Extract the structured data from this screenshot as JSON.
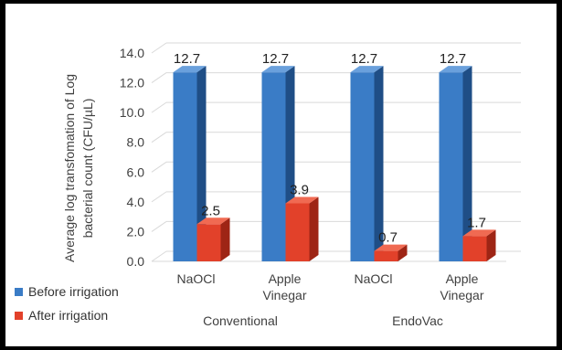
{
  "chart_data": {
    "type": "bar",
    "variant": "3d-clustered-column",
    "ylabel_line1": "Average log transfomation of Log",
    "ylabel_line2": "bacterial count (CFU/µL)",
    "ylim": [
      0,
      14
    ],
    "ytick_step": 2,
    "ytick_labels": [
      "0.0",
      "2.0",
      "4.0",
      "6.0",
      "8.0",
      "10.0",
      "12.0",
      "14.0"
    ],
    "grid": true,
    "legend_position": "bottom-left",
    "categories": [
      {
        "line1": "NaOCl",
        "line2": ""
      },
      {
        "line1": "Apple",
        "line2": "Vinegar"
      },
      {
        "line1": "NaOCl",
        "line2": ""
      },
      {
        "line1": "Apple",
        "line2": "Vinegar"
      }
    ],
    "groups": [
      "Conventional",
      "EndoVac"
    ],
    "series": [
      {
        "name": "Before irrigation",
        "color": "#3a7cc6",
        "side_color": "#1f4e86",
        "top_color": "#6aa0dc",
        "values": [
          12.7,
          12.7,
          12.7,
          12.7
        ],
        "labels": [
          "12.7",
          "12.7",
          "12.7",
          "12.7"
        ]
      },
      {
        "name": "After irrigation",
        "color": "#e2412a",
        "side_color": "#9e2515",
        "top_color": "#f06a52",
        "values": [
          2.5,
          3.9,
          0.7,
          1.7
        ],
        "labels": [
          "2.5",
          "3.9",
          "0.7",
          "1.7"
        ]
      }
    ]
  }
}
